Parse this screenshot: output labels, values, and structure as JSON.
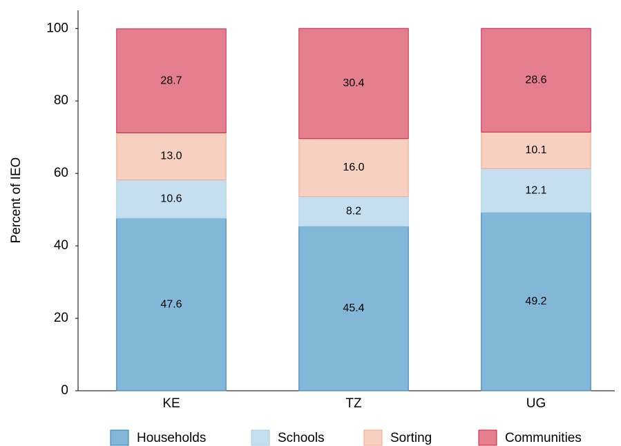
{
  "chart_data": {
    "type": "stacked_bar",
    "y_label": "Percent of IEO",
    "categories": [
      "KE",
      "TZ",
      "UG"
    ],
    "series": [
      {
        "name": "Households",
        "color": "#82b7d8",
        "stroke": "#2b7bb9",
        "values": [
          47.6,
          45.4,
          49.2
        ],
        "value_labels": [
          "47.6",
          "45.4",
          "49.2"
        ]
      },
      {
        "name": "Schools",
        "color": "#c6dff0",
        "stroke": "#a5cbe5",
        "values": [
          10.6,
          8.2,
          12.1
        ],
        "value_labels": [
          "10.6",
          "8.2",
          "12.1"
        ]
      },
      {
        "name": "Sorting",
        "color": "#f8d0c1",
        "stroke": "#f0a58c",
        "values": [
          13.0,
          16.0,
          10.1
        ],
        "value_labels": [
          "13.0",
          "16.0",
          "10.1"
        ]
      },
      {
        "name": "Communities",
        "color": "#e57f8f",
        "stroke": "#c8203e",
        "values": [
          28.7,
          30.4,
          28.6
        ],
        "value_labels": [
          "28.7",
          "30.4",
          "28.6"
        ]
      }
    ],
    "ylim": [
      0,
      105
    ],
    "yticks": [
      0,
      20,
      40,
      60,
      80,
      100
    ],
    "grid": false,
    "legend": "bottom"
  }
}
